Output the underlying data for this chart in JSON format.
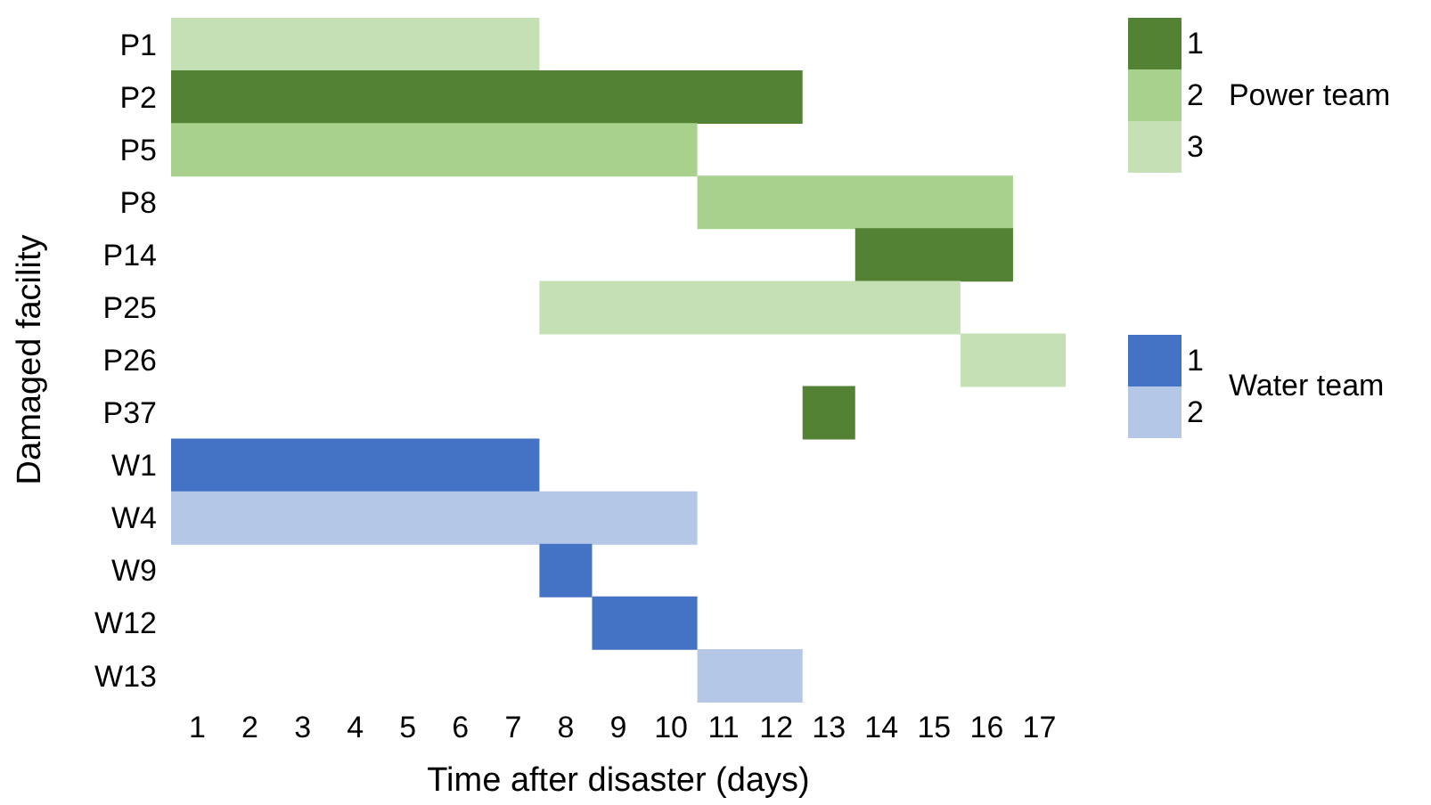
{
  "chart_data": {
    "type": "bar",
    "orientation": "horizontal",
    "xlabel": "Time after disaster (days)",
    "ylabel": "Damaged facility",
    "categories": [
      "P1",
      "P2",
      "P5",
      "P8",
      "P14",
      "P25",
      "P26",
      "P37",
      "W1",
      "W4",
      "W9",
      "W12",
      "W13"
    ],
    "series": [
      {
        "name": "1",
        "color": "#548235",
        "values": [
          null,
          12,
          null,
          null,
          3,
          null,
          null,
          1,
          null,
          null,
          null,
          null,
          null
        ],
        "base": [
          null,
          0.5,
          null,
          null,
          13.5,
          null,
          null,
          12.5,
          null,
          null,
          null,
          null,
          null
        ]
      },
      {
        "name": "2",
        "color": "#a9d18e",
        "values": [
          null,
          null,
          10,
          6,
          null,
          null,
          null,
          null,
          null,
          null,
          null,
          null,
          null
        ],
        "base": [
          null,
          null,
          0.5,
          10.5,
          null,
          null,
          null,
          null,
          null,
          null,
          null,
          null,
          null
        ]
      },
      {
        "name": "3",
        "color": "#c5e0b4",
        "values": [
          7,
          null,
          null,
          null,
          null,
          8,
          2,
          null,
          null,
          null,
          null,
          null,
          null
        ],
        "base": [
          0.5,
          null,
          null,
          null,
          null,
          7.5,
          15.5,
          null,
          null,
          null,
          null,
          null,
          null
        ]
      },
      {
        "name": "1",
        "color": "#4472c4",
        "values": [
          null,
          null,
          null,
          null,
          null,
          null,
          null,
          null,
          7,
          null,
          1,
          2,
          null
        ],
        "base": [
          null,
          null,
          null,
          null,
          null,
          null,
          null,
          null,
          0.5,
          null,
          7.5,
          8.5,
          null
        ]
      },
      {
        "name": "2",
        "color": "#b4c7e7",
        "values": [
          null,
          null,
          null,
          null,
          null,
          null,
          null,
          null,
          null,
          10,
          null,
          null,
          2
        ],
        "base": [
          null,
          null,
          null,
          null,
          null,
          null,
          null,
          null,
          null,
          0.5,
          null,
          null,
          10.5
        ]
      }
    ],
    "xlim": [
      0.5,
      17.5
    ],
    "xticks": [
      1,
      2,
      3,
      4,
      5,
      6,
      7,
      8,
      9,
      10,
      11,
      12,
      13,
      14,
      15,
      16,
      17
    ],
    "annotations": [
      "Power team",
      "Water team"
    ],
    "legend": "right"
  }
}
